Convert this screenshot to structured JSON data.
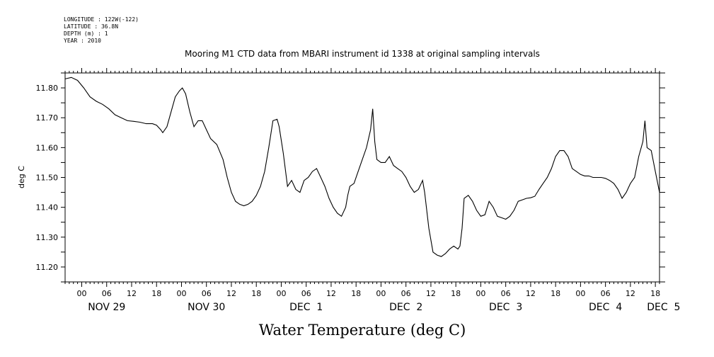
{
  "metadata": [
    "LONGITUDE : 122W(-122)",
    "LATITUDE : 36.8N",
    "DEPTH (m) : 1",
    "YEAR : 2010"
  ],
  "chart_data": {
    "type": "line",
    "title": "Mooring M1 CTD data from MBARI instrument id 1338 at original sampling intervals",
    "xlabel": "Water Temperature (deg C)",
    "ylabel": "deg C",
    "xlim": [
      -4,
      139
    ],
    "ylim": [
      11.15,
      11.85
    ],
    "x_units": "hours since NOV 29 00:00, 2010",
    "y_ticks": [
      "11.20",
      "11.30",
      "11.40",
      "11.50",
      "11.60",
      "11.70",
      "11.80"
    ],
    "y_tick_values": [
      11.2,
      11.3,
      11.4,
      11.5,
      11.6,
      11.7,
      11.8
    ],
    "hour_ticks": [
      {
        "hour": 0,
        "label": "00"
      },
      {
        "hour": 6,
        "label": "06"
      },
      {
        "hour": 12,
        "label": "12"
      },
      {
        "hour": 18,
        "label": "18"
      },
      {
        "hour": 24,
        "label": "00"
      },
      {
        "hour": 30,
        "label": "06"
      },
      {
        "hour": 36,
        "label": "12"
      },
      {
        "hour": 42,
        "label": "18"
      },
      {
        "hour": 48,
        "label": "00"
      },
      {
        "hour": 54,
        "label": "06"
      },
      {
        "hour": 60,
        "label": "12"
      },
      {
        "hour": 66,
        "label": "18"
      },
      {
        "hour": 72,
        "label": "00"
      },
      {
        "hour": 78,
        "label": "06"
      },
      {
        "hour": 84,
        "label": "12"
      },
      {
        "hour": 90,
        "label": "18"
      },
      {
        "hour": 96,
        "label": "00"
      },
      {
        "hour": 102,
        "label": "06"
      },
      {
        "hour": 108,
        "label": "12"
      },
      {
        "hour": 114,
        "label": "18"
      },
      {
        "hour": 120,
        "label": "00"
      },
      {
        "hour": 126,
        "label": "06"
      },
      {
        "hour": 132,
        "label": "12"
      },
      {
        "hour": 138,
        "label": "18"
      }
    ],
    "day_labels": [
      {
        "hour": 6,
        "label": "NOV 29"
      },
      {
        "hour": 30,
        "label": "NOV 30"
      },
      {
        "hour": 54,
        "label": "DEC  1"
      },
      {
        "hour": 78,
        "label": "DEC  2"
      },
      {
        "hour": 102,
        "label": "DEC  3"
      },
      {
        "hour": 126,
        "label": "DEC  4"
      },
      {
        "hour": 150,
        "label": "DEC  5"
      }
    ],
    "series": [
      {
        "points": [
          [
            -4.0,
            11.83
          ],
          [
            -2.5,
            11.835
          ],
          [
            -1.0,
            11.825
          ],
          [
            0.5,
            11.8
          ],
          [
            2.0,
            11.77
          ],
          [
            3.5,
            11.755
          ],
          [
            5.0,
            11.745
          ],
          [
            6.5,
            11.73
          ],
          [
            8.0,
            11.71
          ],
          [
            9.5,
            11.7
          ],
          [
            11.0,
            11.69
          ],
          [
            12.5,
            11.688
          ],
          [
            14.0,
            11.685
          ],
          [
            15.5,
            11.68
          ],
          [
            17.0,
            11.68
          ],
          [
            18.0,
            11.675
          ],
          [
            19.0,
            11.66
          ],
          [
            19.5,
            11.65
          ],
          [
            20.5,
            11.67
          ],
          [
            21.5,
            11.72
          ],
          [
            22.5,
            11.77
          ],
          [
            23.5,
            11.79
          ],
          [
            24.2,
            11.8
          ],
          [
            25.0,
            11.78
          ],
          [
            26.0,
            11.72
          ],
          [
            27.0,
            11.67
          ],
          [
            28.0,
            11.69
          ],
          [
            29.0,
            11.69
          ],
          [
            30.0,
            11.66
          ],
          [
            31.0,
            11.63
          ],
          [
            32.5,
            11.61
          ],
          [
            34.0,
            11.56
          ],
          [
            35.0,
            11.5
          ],
          [
            36.0,
            11.45
          ],
          [
            37.0,
            11.42
          ],
          [
            38.0,
            11.41
          ],
          [
            39.0,
            11.405
          ],
          [
            40.0,
            11.41
          ],
          [
            41.0,
            11.42
          ],
          [
            42.0,
            11.44
          ],
          [
            43.0,
            11.47
          ],
          [
            44.0,
            11.52
          ],
          [
            45.0,
            11.6
          ],
          [
            46.0,
            11.69
          ],
          [
            47.0,
            11.695
          ],
          [
            47.5,
            11.67
          ],
          [
            48.5,
            11.58
          ],
          [
            49.5,
            11.47
          ],
          [
            50.5,
            11.49
          ],
          [
            51.5,
            11.46
          ],
          [
            52.5,
            11.45
          ],
          [
            53.5,
            11.49
          ],
          [
            54.5,
            11.5
          ],
          [
            55.5,
            11.52
          ],
          [
            56.5,
            11.53
          ],
          [
            57.5,
            11.5
          ],
          [
            58.5,
            11.47
          ],
          [
            59.5,
            11.43
          ],
          [
            60.5,
            11.4
          ],
          [
            61.5,
            11.38
          ],
          [
            62.5,
            11.37
          ],
          [
            63.5,
            11.4
          ],
          [
            64.0,
            11.44
          ],
          [
            64.5,
            11.47
          ],
          [
            65.5,
            11.48
          ],
          [
            66.5,
            11.52
          ],
          [
            67.5,
            11.56
          ],
          [
            68.5,
            11.6
          ],
          [
            69.5,
            11.66
          ],
          [
            70.0,
            11.73
          ],
          [
            70.5,
            11.62
          ],
          [
            71.0,
            11.56
          ],
          [
            72.0,
            11.55
          ],
          [
            73.0,
            11.55
          ],
          [
            74.0,
            11.57
          ],
          [
            75.0,
            11.54
          ],
          [
            76.0,
            11.53
          ],
          [
            77.0,
            11.52
          ],
          [
            78.0,
            11.5
          ],
          [
            79.0,
            11.47
          ],
          [
            80.0,
            11.45
          ],
          [
            81.0,
            11.46
          ],
          [
            82.0,
            11.49
          ],
          [
            82.5,
            11.45
          ],
          [
            83.5,
            11.33
          ],
          [
            84.5,
            11.25
          ],
          [
            85.5,
            11.24
          ],
          [
            86.5,
            11.235
          ],
          [
            87.5,
            11.245
          ],
          [
            88.5,
            11.26
          ],
          [
            89.5,
            11.27
          ],
          [
            90.5,
            11.26
          ],
          [
            91.0,
            11.27
          ],
          [
            91.5,
            11.33
          ],
          [
            92.0,
            11.43
          ],
          [
            93.0,
            11.44
          ],
          [
            94.0,
            11.42
          ],
          [
            95.0,
            11.39
          ],
          [
            96.0,
            11.37
          ],
          [
            97.0,
            11.375
          ],
          [
            98.0,
            11.42
          ],
          [
            99.0,
            11.4
          ],
          [
            100.0,
            11.37
          ],
          [
            101.0,
            11.365
          ],
          [
            102.0,
            11.36
          ],
          [
            103.0,
            11.37
          ],
          [
            104.0,
            11.39
          ],
          [
            105.0,
            11.42
          ],
          [
            106.0,
            11.425
          ],
          [
            107.0,
            11.43
          ],
          [
            108.0,
            11.432
          ],
          [
            109.0,
            11.437
          ],
          [
            110.0,
            11.46
          ],
          [
            111.0,
            11.48
          ],
          [
            112.0,
            11.5
          ],
          [
            113.0,
            11.53
          ],
          [
            114.0,
            11.57
          ],
          [
            115.0,
            11.59
          ],
          [
            116.0,
            11.59
          ],
          [
            117.0,
            11.57
          ],
          [
            118.0,
            11.53
          ],
          [
            119.0,
            11.52
          ],
          [
            120.0,
            11.51
          ],
          [
            121.0,
            11.505
          ],
          [
            122.0,
            11.505
          ],
          [
            123.0,
            11.5
          ],
          [
            124.0,
            11.5
          ],
          [
            125.0,
            11.5
          ],
          [
            126.0,
            11.497
          ],
          [
            127.0,
            11.49
          ],
          [
            128.0,
            11.48
          ],
          [
            129.0,
            11.46
          ],
          [
            130.0,
            11.43
          ],
          [
            131.0,
            11.45
          ],
          [
            132.0,
            11.48
          ],
          [
            133.0,
            11.5
          ],
          [
            134.0,
            11.57
          ],
          [
            135.0,
            11.62
          ],
          [
            135.5,
            11.69
          ],
          [
            136.0,
            11.6
          ],
          [
            137.0,
            11.59
          ],
          [
            138.0,
            11.52
          ],
          [
            139.0,
            11.45
          ]
        ]
      }
    ]
  }
}
